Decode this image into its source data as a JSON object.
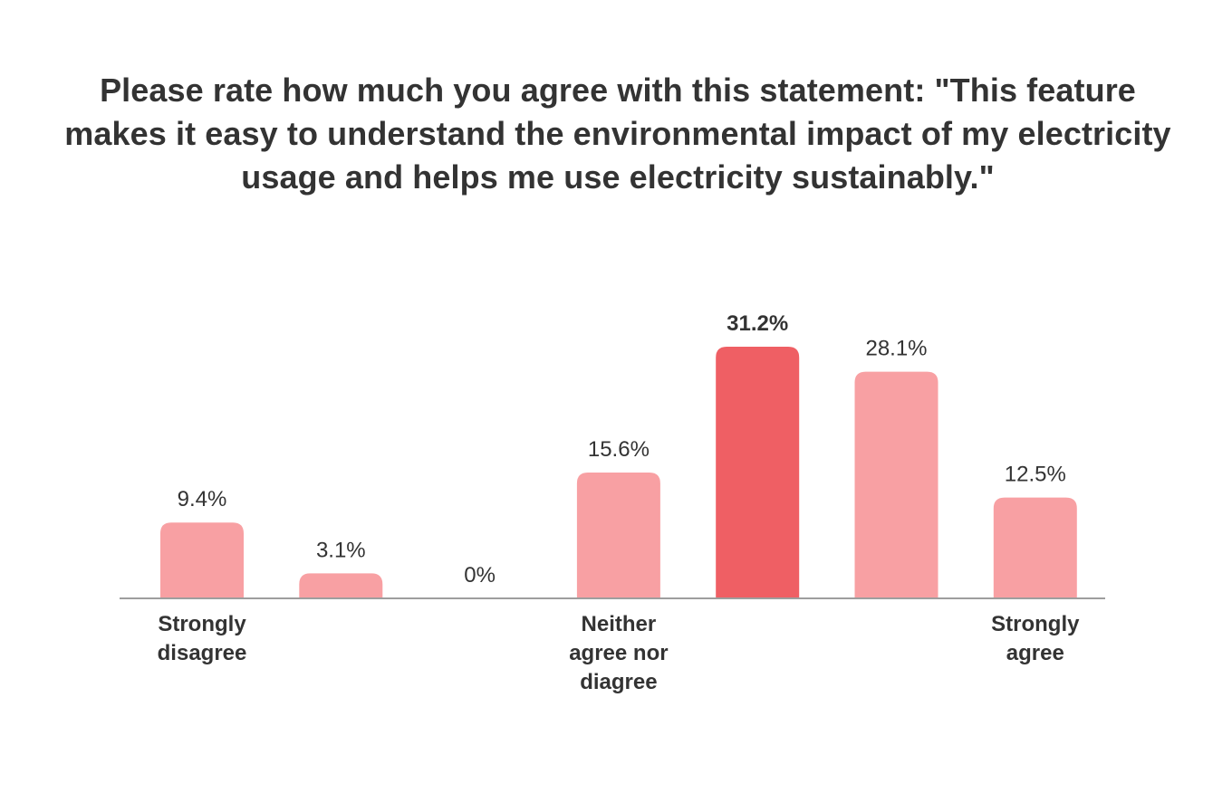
{
  "chart_data": {
    "type": "bar",
    "title": "Please rate how much you agree with this statement: \"This feature makes it easy to understand the environmental impact of my electricity usage and helps me use electricity sustainably.\"",
    "xlabel": "",
    "ylabel": "",
    "categories": [
      [
        "Strongly",
        "disagree"
      ],
      [],
      [],
      [
        "Neither",
        "agree nor",
        "diagree"
      ],
      [],
      [],
      [
        "Strongly",
        "agree"
      ]
    ],
    "values": [
      9.4,
      3.1,
      0,
      15.6,
      31.2,
      28.1,
      12.5
    ],
    "value_labels": [
      "9.4%",
      "3.1%",
      "0%",
      "15.6%",
      "31.2%",
      "28.1%",
      "12.5%"
    ],
    "highlight_index": 4,
    "ylim": [
      0,
      31.2
    ],
    "grid": false,
    "legend": "none",
    "colors": {
      "bar": "#f8a0a3",
      "highlight_bar": "#ef5f64",
      "baseline": "#9e9e9e",
      "text": "#333333"
    }
  }
}
